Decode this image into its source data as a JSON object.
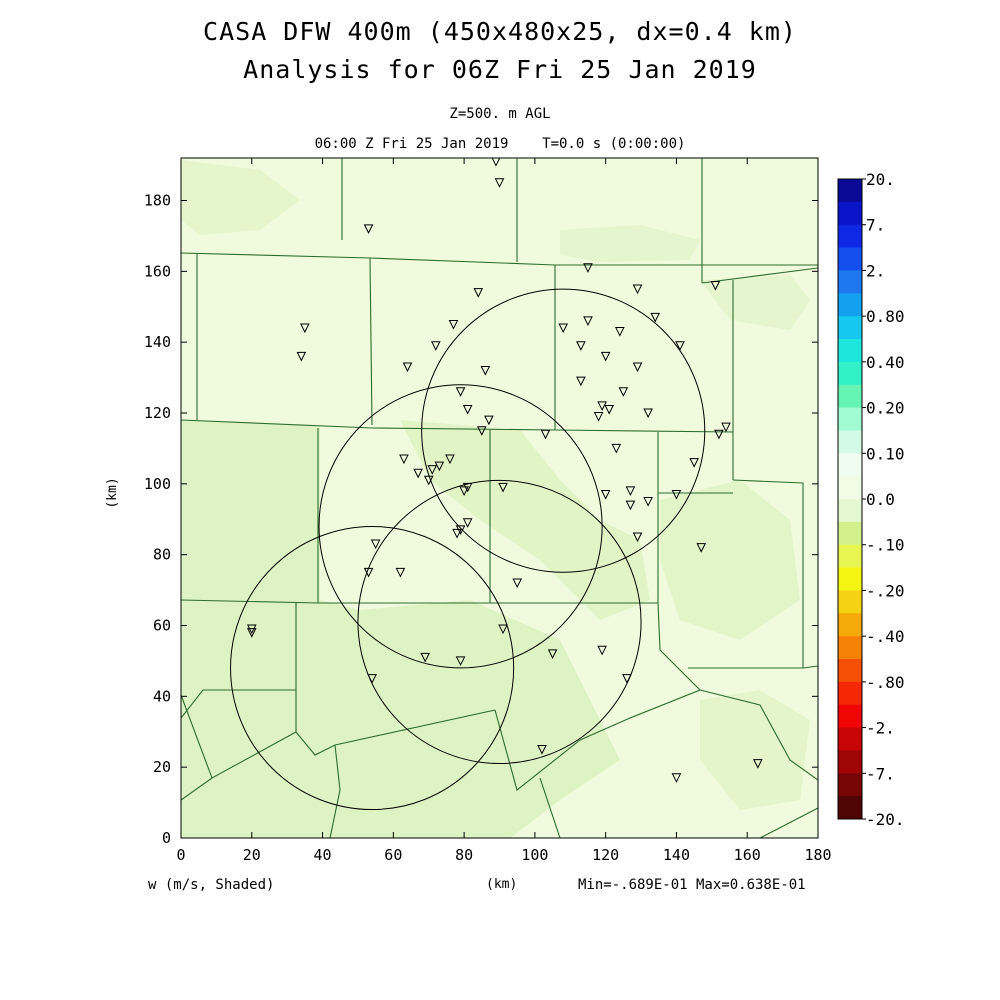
{
  "figure": {
    "title_line1": "CASA DFW 400m (450x480x25, dx=0.4 km)",
    "title_line2": "Analysis for 06Z Fri 25 Jan 2019",
    "level": "Z=500. m AGL",
    "time": "06:00 Z Fri 25 Jan 2019    T=0.0 s (0:00:00)",
    "variable_label": "w (m/s, Shaded)",
    "stats": "Min=-.689E-01 Max=0.638E-01"
  },
  "chart_data": {
    "type": "heatmap",
    "xlabel": "(km)",
    "ylabel": "(km)",
    "xlim": [
      0,
      180
    ],
    "ylim": [
      0,
      192
    ],
    "x_ticks": [
      0,
      20,
      40,
      60,
      80,
      100,
      120,
      140,
      160,
      180
    ],
    "y_ticks": [
      0,
      20,
      40,
      60,
      80,
      100,
      120,
      140,
      160,
      180
    ],
    "colorbar": {
      "labels": [
        "20.",
        "7.",
        "2.",
        "0.80",
        "0.40",
        "0.20",
        "0.10",
        "0.0",
        "-.10",
        "-.20",
        "-.40",
        "-.80",
        "-2.",
        "-7.",
        "-20."
      ],
      "colors": [
        "#0a0a96",
        "#0a14c8",
        "#0f28e6",
        "#1450f0",
        "#1e78f0",
        "#14a0f0",
        "#14c8f0",
        "#1ee6dc",
        "#32f0c8",
        "#64f5b4",
        "#a0fad2",
        "#d2fae6",
        "#f0fcf0",
        "#f0fce6",
        "#e6f8d2",
        "#d2f08c",
        "#e6f550",
        "#f5f514",
        "#f5d214",
        "#f5aa0a",
        "#f58205",
        "#f55005",
        "#f52805",
        "#f00505",
        "#c80505",
        "#a00505",
        "#780505",
        "#500505"
      ]
    },
    "radar_circles": [
      {
        "center": [
          54,
          48
        ],
        "radius": 40
      },
      {
        "center": [
          79,
          88
        ],
        "radius": 40
      },
      {
        "center": [
          90,
          61
        ],
        "radius": 40
      },
      {
        "center": [
          108,
          115
        ],
        "radius": 40
      }
    ],
    "stations": [
      [
        89,
        191
      ],
      [
        90,
        185
      ],
      [
        53,
        172
      ],
      [
        115,
        161
      ],
      [
        129,
        155
      ],
      [
        151,
        156
      ],
      [
        84,
        154
      ],
      [
        134,
        147
      ],
      [
        35,
        144
      ],
      [
        77,
        145
      ],
      [
        108,
        144
      ],
      [
        115,
        146
      ],
      [
        124,
        143
      ],
      [
        72,
        139
      ],
      [
        113,
        139
      ],
      [
        141,
        139
      ],
      [
        34,
        136
      ],
      [
        64,
        133
      ],
      [
        120,
        136
      ],
      [
        86,
        132
      ],
      [
        129,
        133
      ],
      [
        113,
        129
      ],
      [
        79,
        126
      ],
      [
        125,
        126
      ],
      [
        119,
        122
      ],
      [
        121,
        121
      ],
      [
        81,
        121
      ],
      [
        118,
        119
      ],
      [
        132,
        120
      ],
      [
        87,
        118
      ],
      [
        85,
        115
      ],
      [
        103,
        114
      ],
      [
        152,
        114
      ],
      [
        154,
        116
      ],
      [
        123,
        110
      ],
      [
        76,
        107
      ],
      [
        63,
        107
      ],
      [
        145,
        106
      ],
      [
        71,
        104
      ],
      [
        73,
        105
      ],
      [
        67,
        103
      ],
      [
        70,
        101
      ],
      [
        81,
        99
      ],
      [
        80,
        98
      ],
      [
        91,
        99
      ],
      [
        120,
        97
      ],
      [
        127,
        98
      ],
      [
        140,
        97
      ],
      [
        127,
        94
      ],
      [
        132,
        95
      ],
      [
        81,
        89
      ],
      [
        78,
        86
      ],
      [
        79,
        87
      ],
      [
        129,
        85
      ],
      [
        55,
        83
      ],
      [
        147,
        82
      ],
      [
        62,
        75
      ],
      [
        53,
        75
      ],
      [
        95,
        72
      ],
      [
        20,
        59
      ],
      [
        20,
        58
      ],
      [
        91,
        59
      ],
      [
        119,
        53
      ],
      [
        105,
        52
      ],
      [
        69,
        51
      ],
      [
        79,
        50
      ],
      [
        54,
        45
      ],
      [
        126,
        45
      ],
      [
        102,
        25
      ],
      [
        140,
        17
      ],
      [
        163,
        21
      ]
    ]
  }
}
